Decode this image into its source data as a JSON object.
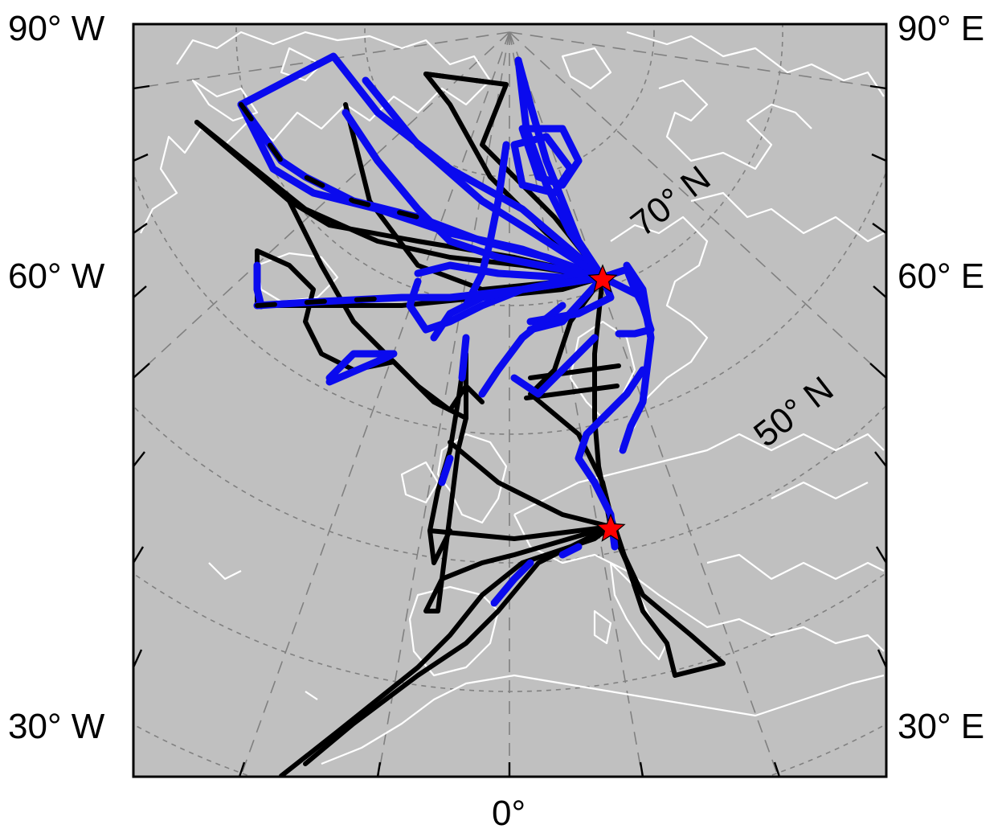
{
  "map": {
    "projection": "polar stereographic (north)",
    "ocean_color": "#c0c0c0",
    "coastline_color": "#ffffff",
    "grid_color": "#808080",
    "frame_color": "#000000",
    "longitude_labels": {
      "left_top": "90° W",
      "left_mid": "60° W",
      "left_bottom": "30° W",
      "right_top": "90° E",
      "right_mid": "60° E",
      "right_bottom": "30° E",
      "bottom_center": "0°"
    },
    "latitude_labels": {
      "lat_70": "70° N",
      "lat_50": "50° N"
    }
  },
  "tracks": {
    "black_color": "#000000",
    "blue_color": "#0a0aee",
    "star_color": "#ff0000",
    "star_labels": [
      "star-marker-north",
      "star-marker-south"
    ]
  }
}
